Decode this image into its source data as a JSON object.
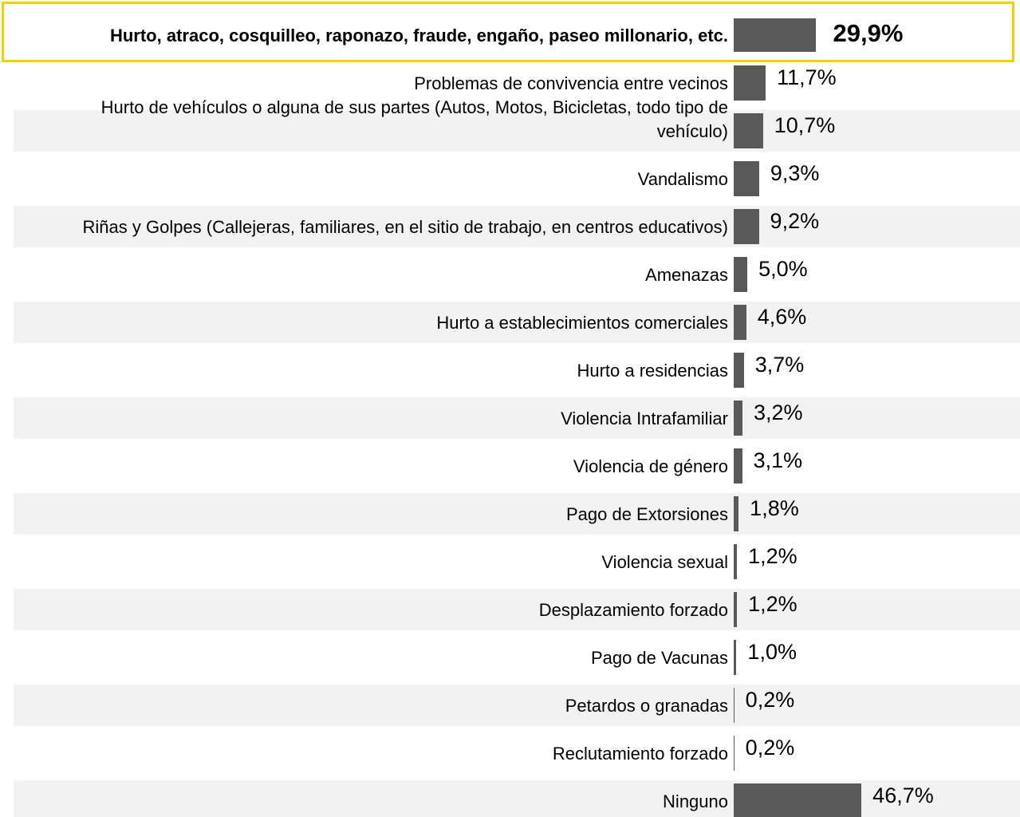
{
  "chart_data": {
    "type": "bar",
    "orientation": "horizontal",
    "categories": [
      "Hurto, atraco, cosquilleo, raponazo, fraude, engaño, paseo millonario, etc.",
      "Problemas de convivencia entre vecinos",
      "Hurto de vehículos o alguna de sus partes (Autos, Motos, Bicicletas, todo tipo de vehículo)",
      "Vandalismo",
      "Riñas y Golpes (Callejeras, familiares, en el sitio de trabajo, en centros educativos)",
      "Amenazas",
      "Hurto a establecimientos comerciales",
      "Hurto a residencias",
      "Violencia Intrafamiliar",
      "Violencia de género",
      "Pago de Extorsiones",
      "Violencia sexual",
      "Desplazamiento forzado",
      "Pago de Vacunas",
      "Petardos o granadas",
      "Reclutamiento forzado",
      "Ninguno"
    ],
    "values": [
      29.9,
      11.7,
      10.7,
      9.3,
      9.2,
      5.0,
      4.6,
      3.7,
      3.2,
      3.1,
      1.8,
      1.2,
      1.2,
      1.0,
      0.2,
      0.2,
      46.7
    ],
    "value_labels": [
      "29,9%",
      "11,7%",
      "10,7%",
      "9,3%",
      "9,2%",
      "5,0%",
      "4,6%",
      "3,7%",
      "3,2%",
      "3,1%",
      "1,8%",
      "1,2%",
      "1,2%",
      "1,0%",
      "0,2%",
      "0,2%",
      "46,7%"
    ],
    "color": "#595959",
    "highlight": 0,
    "highlight_color": "#f5d100"
  }
}
